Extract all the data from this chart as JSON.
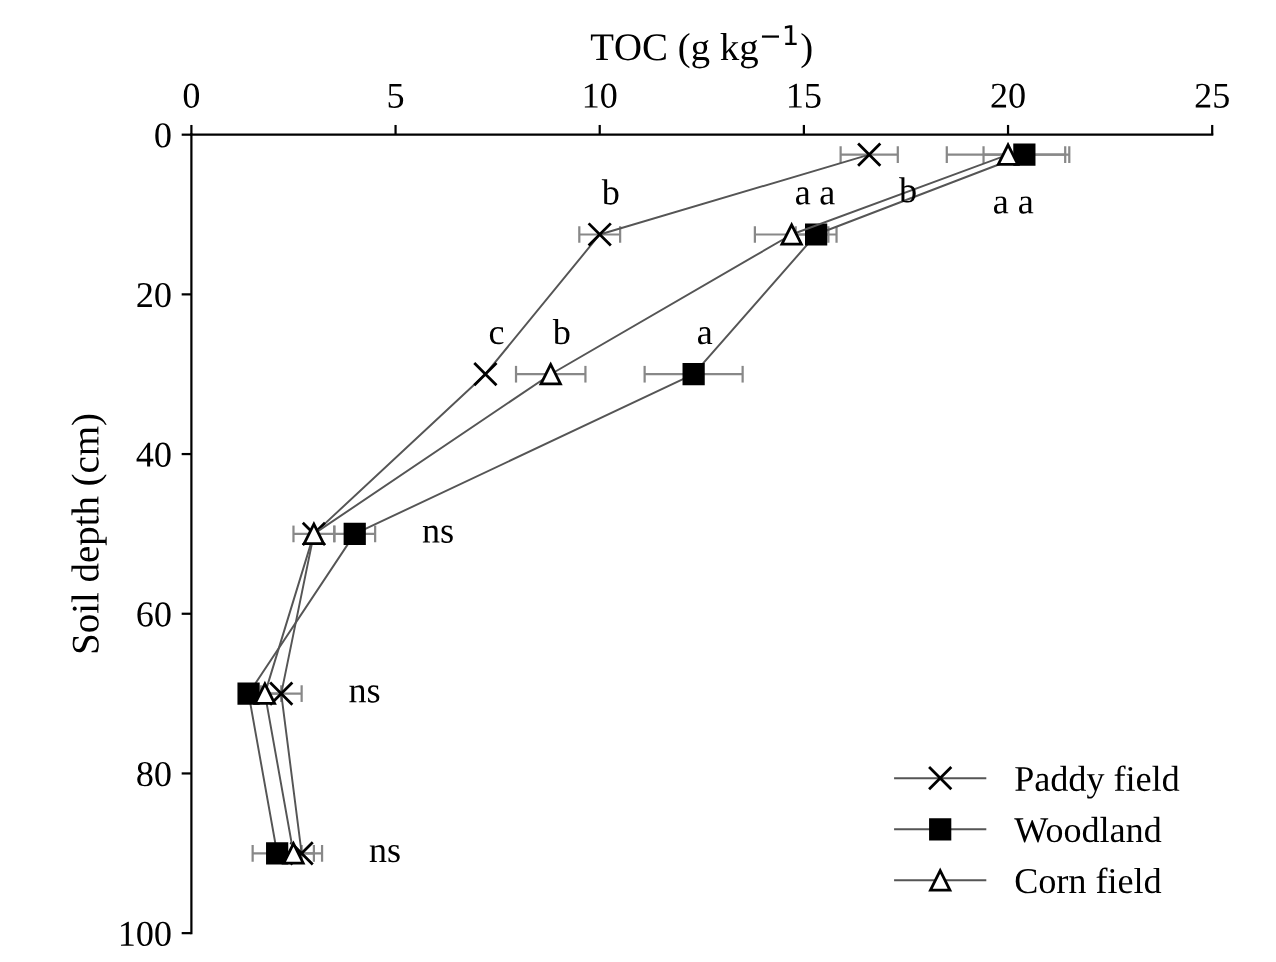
{
  "chart_data": {
    "type": "line",
    "xlabel": "TOC (g kg$^{−1}$)",
    "ylabel": "Soil depth (cm)",
    "xlim": [
      0,
      25
    ],
    "xticks": [
      0,
      5,
      10,
      15,
      20,
      25
    ],
    "ylim": [
      100,
      0
    ],
    "yticks": [
      0,
      20,
      40,
      60,
      80,
      100
    ],
    "grid": false,
    "legend": "bottom right",
    "series": [
      {
        "name": "Paddy field",
        "color": "#000000",
        "marker": "cross",
        "x": [
          16.6,
          10.0,
          7.2,
          3.0,
          2.2,
          2.7
        ],
        "values": [
          2.5,
          12.5,
          30,
          50,
          70,
          90
        ],
        "xerrors": [
          0.7,
          0.5,
          null,
          null,
          0.5,
          0.5
        ]
      },
      {
        "name": "Woodland",
        "color": "#000000",
        "marker": "square",
        "x": [
          20.4,
          15.3,
          12.3,
          4.0,
          1.4,
          2.1
        ],
        "values": [
          2.5,
          12.5,
          30,
          50,
          70,
          90
        ],
        "xerrors": [
          1.0,
          0.5,
          1.2,
          0.5,
          0.2,
          0.6
        ]
      },
      {
        "name": "Corn field",
        "color": "#000000",
        "marker": "triangle",
        "x": [
          20.0,
          14.7,
          8.8,
          3.0,
          1.8,
          2.5
        ],
        "values": [
          2.5,
          12.5,
          30,
          50,
          70,
          90
        ],
        "xerrors": [
          1.5,
          0.9,
          0.85,
          0.5,
          0.4,
          0.5
        ]
      }
    ],
    "annotations": [
      {
        "text": "b",
        "x": 16.6,
        "y": 2.5
      },
      {
        "text": "a a",
        "x": 20.4,
        "y": 2.5
      },
      {
        "text": "b",
        "x": 10.0,
        "y": 12.5
      },
      {
        "text": "a",
        "x": 14.7,
        "y": 12.5
      },
      {
        "text": "a",
        "x": 15.3,
        "y": 12.5
      },
      {
        "text": "c",
        "x": 7.2,
        "y": 30
      },
      {
        "text": "b",
        "x": 8.8,
        "y": 30
      },
      {
        "text": "a",
        "x": 12.3,
        "y": 30
      },
      {
        "text": "ns",
        "x": 4.0,
        "y": 50
      },
      {
        "text": "ns",
        "x": 2.2,
        "y": 70
      },
      {
        "text": "ns",
        "x": 2.7,
        "y": 90
      }
    ]
  }
}
